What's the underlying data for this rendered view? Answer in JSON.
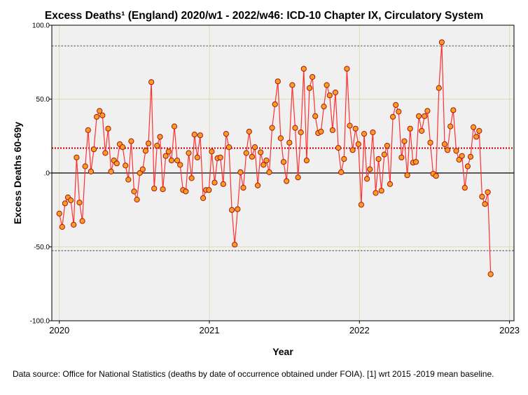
{
  "chart_data": {
    "type": "line",
    "title": "Excess Deaths¹ (England) 2020/w1 - 2022/w46: ICD-10 Chapter IX, Circulatory System",
    "xlabel": "Year",
    "ylabel": "Excess Deaths 60-69y",
    "xlim": [
      2019.95,
      2023.03
    ],
    "ylim": [
      -100,
      100
    ],
    "x_ticks": [
      2020,
      2021,
      2022,
      2023
    ],
    "x_tick_labels": [
      "2020",
      "2021",
      "2022",
      "2023"
    ],
    "y_ticks": [
      -100,
      -50,
      0,
      50,
      100
    ],
    "y_tick_labels": [
      "-100.0",
      "-50.0",
      ".0",
      "50.0",
      "100.0"
    ],
    "grid": true,
    "reference_lines": [
      {
        "name": "zero",
        "y": 0,
        "style": "solid",
        "color": "#000000"
      },
      {
        "name": "mean",
        "y": 16.8,
        "style": "dotted",
        "color": "#c00000"
      },
      {
        "name": "upper-limit",
        "y": 86,
        "style": "dotted",
        "color": "#888888"
      },
      {
        "name": "lower-limit",
        "y": -52.5,
        "style": "dotted",
        "color": "#888888"
      }
    ],
    "series": [
      {
        "name": "Excess deaths 60-69y",
        "line_color": "#ff3030",
        "marker_color": "#f5a020",
        "marker_edge": "#b01010",
        "start_year": 2020.0,
        "step_years": 0.019165,
        "values": [
          -27.5,
          -36.5,
          -20.5,
          -16.5,
          -18.5,
          -35,
          10.5,
          -20,
          -32.5,
          4.5,
          29,
          1,
          16,
          38,
          42,
          39,
          13.5,
          30,
          1,
          8.5,
          6.5,
          19.5,
          17.5,
          5,
          -4.5,
          21.5,
          -12.5,
          -18,
          0,
          2.5,
          15,
          20,
          61.5,
          -10.5,
          18.5,
          24.5,
          -11,
          11.5,
          14.5,
          8.5,
          31.5,
          8.5,
          5.5,
          -11.5,
          -12.5,
          13.5,
          -3.5,
          26,
          10.5,
          25.5,
          -17,
          -11.5,
          -11.5,
          14.5,
          -6.5,
          10,
          10.5,
          -7.5,
          26.5,
          17.5,
          -25,
          -48.5,
          -24.5,
          0.5,
          -10,
          13.5,
          28,
          11,
          17.5,
          -8.5,
          14,
          5.5,
          8.5,
          0.5,
          30.5,
          46.5,
          62,
          23.5,
          7.5,
          -5.5,
          20.5,
          59.5,
          30.5,
          -3,
          27.5,
          70.5,
          8.5,
          57.5,
          65,
          38.5,
          27,
          28,
          45,
          59.5,
          52.5,
          29,
          54.5,
          17,
          0.5,
          9.5,
          70.5,
          32,
          15.5,
          30,
          19.5,
          -21.5,
          26.5,
          -4,
          2.5,
          27.5,
          -13.5,
          9.5,
          -12,
          12.5,
          18.5,
          -7.5,
          38,
          46,
          41.5,
          10.5,
          21.5,
          -1.5,
          30,
          7,
          7.5,
          38.5,
          28.5,
          38.5,
          42,
          20.5,
          -0.5,
          -2,
          57.5,
          88.5,
          19.5,
          15.5,
          31.5,
          42.5,
          15,
          9,
          11.5,
          -10,
          4.5,
          11,
          31,
          24.5,
          28.5,
          -16,
          -21,
          -13,
          -68.5
        ]
      }
    ],
    "footnote": "Data source: Office for National Statistics (deaths by date of occurrence obtained under FOIA). [1] wrt 2015 -2019 mean baseline."
  }
}
